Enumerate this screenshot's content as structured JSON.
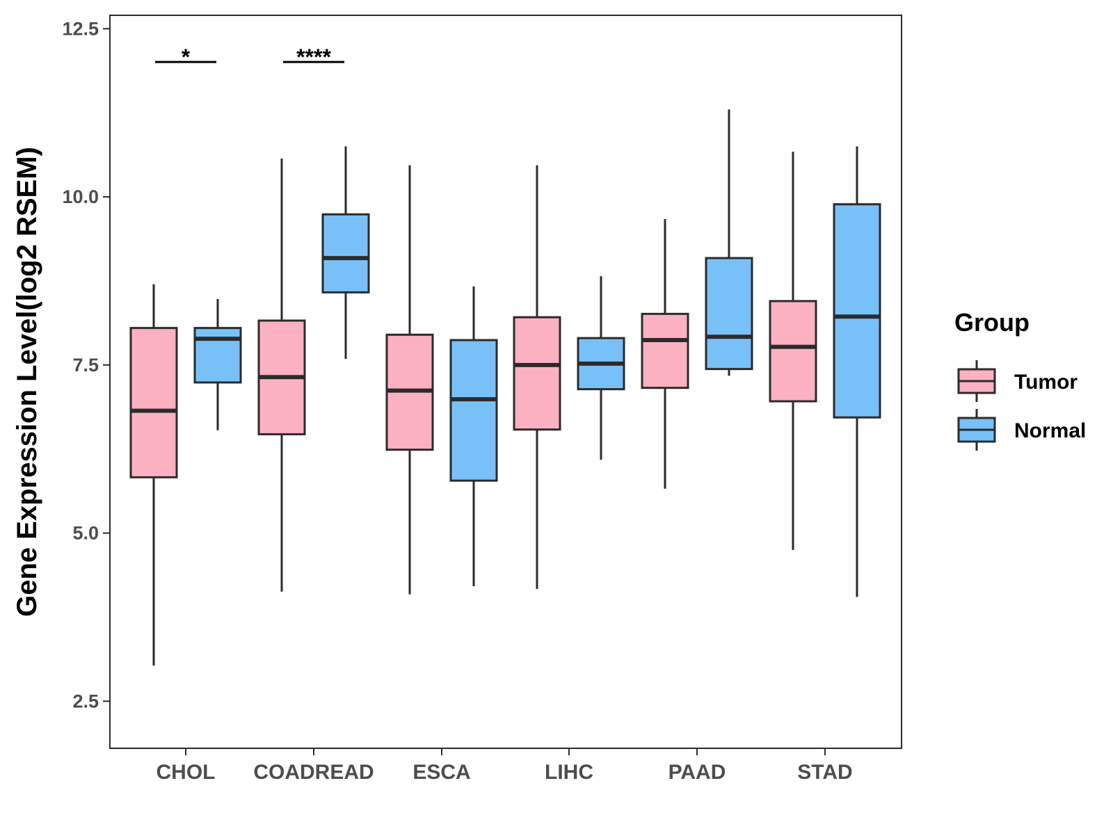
{
  "chart_data": {
    "type": "boxplot",
    "title": "",
    "xlabel": "",
    "ylabel": "Gene Expression Level(log2 RSEM)",
    "ylim": [
      1.8,
      12.7
    ],
    "y_ticks": [
      2.5,
      5.0,
      7.5,
      10.0,
      12.5
    ],
    "y_tick_labels": [
      "2.5",
      "5.0",
      "7.5",
      "10.0",
      "12.5"
    ],
    "categories": [
      "CHOL",
      "COADREAD",
      "ESCA",
      "LIHC",
      "PAAD",
      "STAD"
    ],
    "grid": false,
    "legend": {
      "title": "Group",
      "position": "right",
      "entries": [
        {
          "name": "Tumor",
          "color": "#fcb1c3"
        },
        {
          "name": "Normal",
          "color": "#78c1f8"
        }
      ]
    },
    "series": [
      {
        "name": "Tumor",
        "color": "#fcb1c3",
        "boxes": [
          {
            "category": "CHOL",
            "min": 3.03,
            "q1": 5.83,
            "median": 6.82,
            "q3": 8.05,
            "max": 8.7
          },
          {
            "category": "COADREAD",
            "min": 4.13,
            "q1": 6.47,
            "median": 7.32,
            "q3": 8.16,
            "max": 10.57
          },
          {
            "category": "ESCA",
            "min": 4.09,
            "q1": 6.24,
            "median": 7.12,
            "q3": 7.95,
            "max": 10.47
          },
          {
            "category": "LIHC",
            "min": 4.17,
            "q1": 6.54,
            "median": 7.5,
            "q3": 8.21,
            "max": 10.47
          },
          {
            "category": "PAAD",
            "min": 5.66,
            "q1": 7.16,
            "median": 7.87,
            "q3": 8.26,
            "max": 9.67
          },
          {
            "category": "STAD",
            "min": 4.75,
            "q1": 6.96,
            "median": 7.77,
            "q3": 8.45,
            "max": 10.67
          }
        ]
      },
      {
        "name": "Normal",
        "color": "#78c1f8",
        "boxes": [
          {
            "category": "CHOL",
            "min": 6.53,
            "q1": 7.24,
            "median": 7.89,
            "q3": 8.05,
            "max": 8.48
          },
          {
            "category": "COADREAD",
            "min": 7.59,
            "q1": 8.58,
            "median": 9.09,
            "q3": 9.74,
            "max": 10.75
          },
          {
            "category": "ESCA",
            "min": 4.21,
            "q1": 5.78,
            "median": 6.99,
            "q3": 7.87,
            "max": 8.67
          },
          {
            "category": "LIHC",
            "min": 6.09,
            "q1": 7.14,
            "median": 7.52,
            "q3": 7.9,
            "max": 8.82
          },
          {
            "category": "PAAD",
            "min": 7.34,
            "q1": 7.44,
            "median": 7.92,
            "q3": 9.09,
            "max": 11.3
          },
          {
            "category": "STAD",
            "min": 4.05,
            "q1": 6.72,
            "median": 8.22,
            "q3": 9.89,
            "max": 10.75
          }
        ]
      }
    ],
    "annotations": [
      {
        "category": "CHOL",
        "label": "*",
        "y": 12.15
      },
      {
        "category": "COADREAD",
        "label": "****",
        "y": 12.15
      }
    ]
  }
}
